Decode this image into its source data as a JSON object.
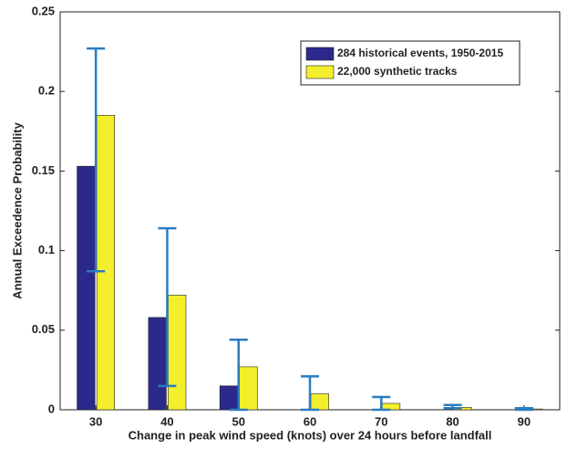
{
  "chart_data": {
    "type": "bar",
    "xlabel": "Change in peak wind speed (knots) over 24 hours before landfall",
    "ylabel": "Annual Exceedence Probability",
    "categories": [
      "30",
      "40",
      "50",
      "60",
      "70",
      "80",
      "90"
    ],
    "series": [
      {
        "name": "284 historical events, 1950-2015",
        "color": "#2b2a8c",
        "values": [
          0.153,
          0.058,
          0.015,
          0,
          0,
          0,
          0
        ]
      },
      {
        "name": "22,000 synthetic tracks",
        "color": "#f4ef2c",
        "values": [
          0.185,
          0.072,
          0.027,
          0.01,
          0.004,
          0.0015,
          0.0005
        ]
      }
    ],
    "error_bars": {
      "color": "#2a7cc0",
      "lower": [
        0.087,
        0.015,
        0,
        0,
        0,
        0.001,
        0
      ],
      "upper": [
        0.227,
        0.114,
        0.044,
        0.021,
        0.008,
        0.003,
        0.001
      ]
    },
    "ylim": [
      0,
      0.25
    ],
    "yticks": [
      0,
      0.05,
      0.1,
      0.15,
      0.2,
      0.25
    ],
    "legend": "upper right"
  }
}
